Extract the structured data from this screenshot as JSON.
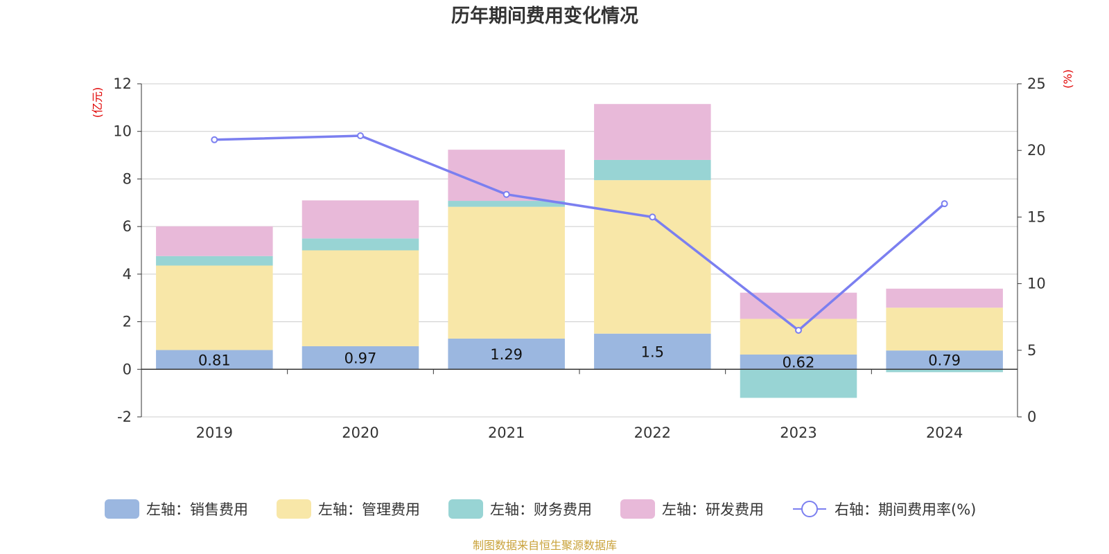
{
  "title": "历年期间费用变化情况",
  "source": "制图数据来自恒生聚源数据库",
  "left_unit": "(亿元)",
  "right_unit": "(%)",
  "colors": {
    "sales": "#9bb7e0",
    "admin": "#f8e7a8",
    "finance": "#98d4d4",
    "rd": "#e8b9d9",
    "rate": "#7b7ff0",
    "grid": "#cccccc",
    "axis": "#333333"
  },
  "chart_data": {
    "type": "bar",
    "categories": [
      "2019",
      "2020",
      "2021",
      "2022",
      "2023",
      "2024"
    ],
    "left_axis": {
      "min": -2,
      "max": 12,
      "ticks": [
        -2,
        0,
        2,
        4,
        6,
        8,
        10,
        12
      ]
    },
    "right_axis": {
      "min": 0,
      "max": 25,
      "ticks": [
        0,
        5,
        10,
        15,
        20,
        25
      ]
    },
    "series": [
      {
        "key": "sales",
        "name": "左轴：销售费用",
        "axis": "left",
        "type": "bar",
        "values": [
          0.81,
          0.97,
          1.29,
          1.5,
          0.62,
          0.79
        ],
        "labels": [
          "0.81",
          "0.97",
          "1.29",
          "1.5",
          "0.62",
          "0.79"
        ]
      },
      {
        "key": "admin",
        "name": "左轴：管理费用",
        "axis": "left",
        "type": "bar",
        "values": [
          3.55,
          4.03,
          5.54,
          6.45,
          1.5,
          1.8
        ]
      },
      {
        "key": "finance",
        "name": "左轴：财务费用",
        "axis": "left",
        "type": "bar",
        "values": [
          0.4,
          0.5,
          0.25,
          0.85,
          -1.2,
          -0.12
        ]
      },
      {
        "key": "rd",
        "name": "左轴：研发费用",
        "axis": "left",
        "type": "bar",
        "values": [
          1.25,
          1.6,
          2.15,
          2.35,
          1.1,
          0.8
        ]
      },
      {
        "key": "rate",
        "name": "右轴：期间费用率(%)",
        "axis": "right",
        "type": "line",
        "values": [
          20.8,
          21.1,
          16.7,
          15.0,
          6.5,
          16.0
        ]
      }
    ]
  }
}
